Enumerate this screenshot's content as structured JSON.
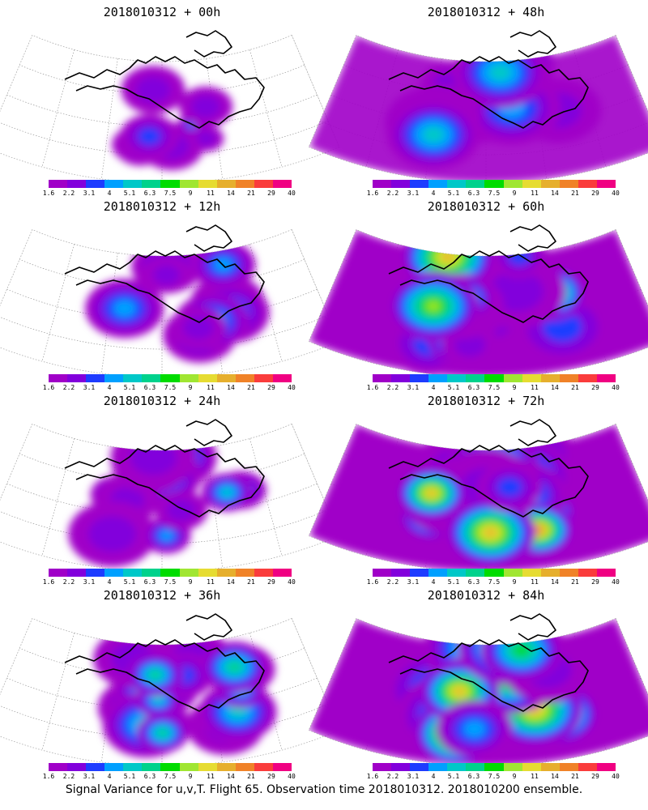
{
  "footer_caption": "Signal Variance for u,v,T. Flight 65. Observation time 2018010312. 2018010200 ensemble.",
  "colorbar": {
    "labels": [
      "1.6",
      "2.2",
      "3.1",
      "4",
      "5.1",
      "6.3",
      "7.5",
      "9",
      "11",
      "14",
      "21",
      "29",
      "40"
    ],
    "colors": [
      "#a000c8",
      "#8200dc",
      "#1e3cff",
      "#00a0ff",
      "#00c8c8",
      "#00d28c",
      "#00dc00",
      "#a0e632",
      "#e6dc32",
      "#e6af2d",
      "#f08228",
      "#fa3c3c",
      "#f00082"
    ]
  },
  "panels": [
    {
      "title": "2018010312 + 00h",
      "lead_hours": 0
    },
    {
      "title": "2018010312 + 48h",
      "lead_hours": 48
    },
    {
      "title": "2018010312 + 12h",
      "lead_hours": 12
    },
    {
      "title": "2018010312 + 60h",
      "lead_hours": 60
    },
    {
      "title": "2018010312 + 24h",
      "lead_hours": 24
    },
    {
      "title": "2018010312 + 72h",
      "lead_hours": 72
    },
    {
      "title": "2018010312 + 36h",
      "lead_hours": 36
    },
    {
      "title": "2018010312 + 84h",
      "lead_hours": 84
    }
  ]
}
